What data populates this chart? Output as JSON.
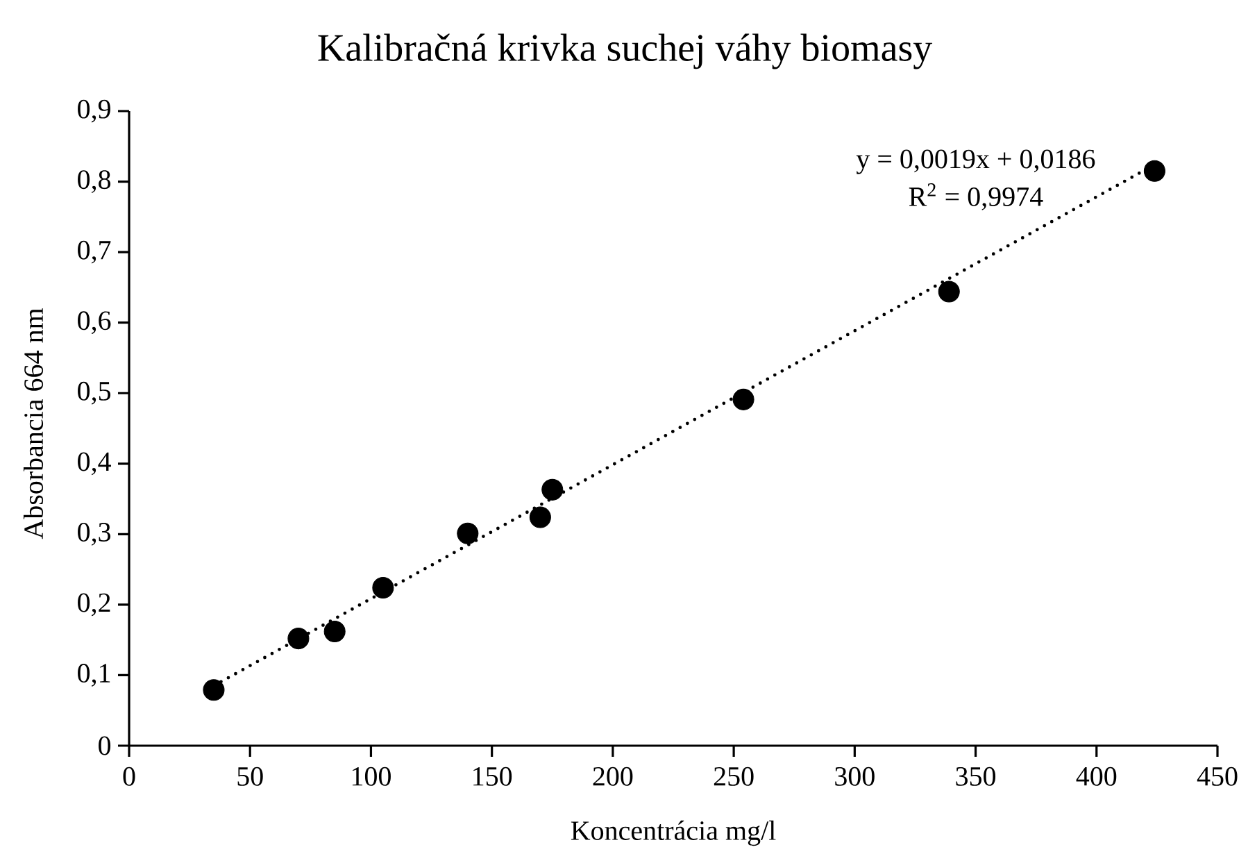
{
  "chart_data": {
    "type": "scatter",
    "title": "Kalibračná krivka suchej váhy biomasy",
    "xlabel": "Koncentrácia mg/l",
    "ylabel": "Absorbancia 664 nm",
    "series": [
      {
        "color": "#000000",
        "marker": "circle",
        "x": [
          35,
          70,
          85,
          105,
          140,
          170,
          175,
          254,
          339,
          424
        ],
        "values": [
          0.079,
          0.152,
          0.162,
          0.224,
          0.301,
          0.324,
          0.363,
          0.491,
          0.644,
          0.815
        ]
      },
      {
        "type": "line",
        "color": "#000000",
        "marker": "none",
        "line_style": "dotted",
        "x": [
          35,
          424
        ],
        "values": [
          0.085,
          0.824
        ]
      }
    ],
    "xlim": [
      0,
      450
    ],
    "xticks": [
      0,
      50,
      100,
      150,
      200,
      250,
      300,
      350,
      400,
      450
    ],
    "ylim": [
      0,
      0.9
    ],
    "yticks": [
      {
        "value": 0,
        "label": "0"
      },
      {
        "value": 0.1,
        "label": "0,1"
      },
      {
        "value": 0.2,
        "label": "0,2"
      },
      {
        "value": 0.3,
        "label": "0,3"
      },
      {
        "value": 0.4,
        "label": "0,4"
      },
      {
        "value": 0.5,
        "label": "0,5"
      },
      {
        "value": 0.6,
        "label": "0,6"
      },
      {
        "value": 0.7,
        "label": "0,7"
      },
      {
        "value": 0.8,
        "label": "0,8"
      },
      {
        "value": 0.9,
        "label": "0,9"
      }
    ],
    "annotations": [
      "y = 0,0019x + 0,0186",
      "R$^{2}$ = 0,9974"
    ]
  }
}
